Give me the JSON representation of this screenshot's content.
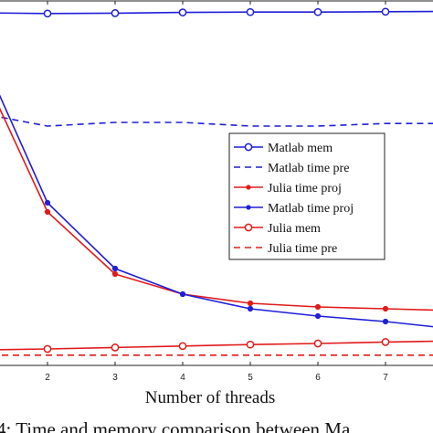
{
  "chart_data": {
    "type": "line",
    "xlabel": "Number of threads",
    "ylabel": "",
    "x_ticks": [
      "2",
      "3",
      "4",
      "5",
      "6",
      "7"
    ],
    "xlim": [
      1,
      8
    ],
    "ylim": [
      0,
      1
    ],
    "grid": false,
    "legend_position": "right",
    "series": [
      {
        "name": "Matlab mem",
        "color": "#1f1fd6",
        "style": "solid",
        "marker": "circle",
        "x": [
          1,
          2,
          3,
          4,
          5,
          6,
          7,
          8
        ],
        "y": [
          0.965,
          0.963,
          0.964,
          0.966,
          0.967,
          0.967,
          0.968,
          0.969
        ]
      },
      {
        "name": "Matlab time pre",
        "color": "#1f1fd6",
        "style": "dashed",
        "marker": "none",
        "x": [
          1,
          2,
          3,
          4,
          5,
          6,
          7,
          8
        ],
        "y": [
          0.69,
          0.655,
          0.665,
          0.665,
          0.655,
          0.655,
          0.662,
          0.662
        ]
      },
      {
        "name": "Julia time proj",
        "color": "#e01b1b",
        "style": "solid",
        "marker": "dot",
        "x": [
          1,
          2,
          3,
          4,
          5,
          6,
          7,
          8
        ],
        "y": [
          0.82,
          0.42,
          0.25,
          0.195,
          0.17,
          0.16,
          0.155,
          0.15
        ]
      },
      {
        "name": "Matlab time proj",
        "color": "#1f1fd6",
        "style": "solid",
        "marker": "dot",
        "x": [
          1,
          2,
          3,
          4,
          5,
          6,
          7,
          8
        ],
        "y": [
          0.86,
          0.445,
          0.265,
          0.195,
          0.155,
          0.135,
          0.12,
          0.1
        ]
      },
      {
        "name": "Julia mem",
        "color": "#e01b1b",
        "style": "solid",
        "marker": "circle",
        "x": [
          1,
          2,
          3,
          4,
          5,
          6,
          7,
          8
        ],
        "y": [
          0.042,
          0.045,
          0.049,
          0.053,
          0.057,
          0.06,
          0.064,
          0.067
        ]
      },
      {
        "name": "Julia time pre",
        "color": "#e01b1b",
        "style": "dashed",
        "marker": "none",
        "x": [
          1,
          2,
          3,
          4,
          5,
          6,
          7,
          8
        ],
        "y": [
          0.028,
          0.028,
          0.028,
          0.028,
          0.028,
          0.028,
          0.028,
          0.028
        ]
      }
    ]
  },
  "caption": "4: Time and memory comparison between Ma"
}
